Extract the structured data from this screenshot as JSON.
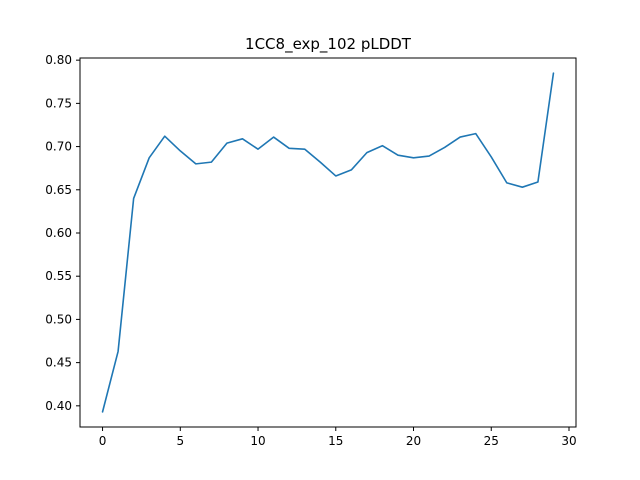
{
  "chart_data": {
    "type": "line",
    "title": "1CC8_exp_102 pLDDT",
    "xlabel": "",
    "ylabel": "",
    "xlim": [
      -1.45,
      30.45
    ],
    "ylim": [
      0.3755,
      0.8025
    ],
    "grid": false,
    "xticks": [
      0,
      5,
      10,
      15,
      20,
      25,
      30
    ],
    "yticks": [
      0.4,
      0.45,
      0.5,
      0.55,
      0.6,
      0.65,
      0.7,
      0.75,
      0.8
    ],
    "xtick_labels": [
      "0",
      "5",
      "10",
      "15",
      "20",
      "25",
      "30"
    ],
    "ytick_labels": [
      "0.40",
      "0.45",
      "0.50",
      "0.55",
      "0.60",
      "0.65",
      "0.70",
      "0.75",
      "0.80"
    ],
    "series": [
      {
        "color": "#1f77b4",
        "x": [
          0,
          1,
          2,
          3,
          4,
          5,
          6,
          7,
          8,
          9,
          10,
          11,
          12,
          13,
          14,
          15,
          16,
          17,
          18,
          19,
          20,
          21,
          22,
          23,
          24,
          25,
          26,
          27,
          28,
          29
        ],
        "y": [
          0.393,
          0.463,
          0.64,
          0.687,
          0.712,
          0.695,
          0.68,
          0.682,
          0.704,
          0.709,
          0.697,
          0.711,
          0.698,
          0.697,
          0.682,
          0.666,
          0.673,
          0.693,
          0.701,
          0.69,
          0.687,
          0.689,
          0.699,
          0.711,
          0.715,
          0.688,
          0.658,
          0.653,
          0.659,
          0.785
        ]
      }
    ]
  }
}
